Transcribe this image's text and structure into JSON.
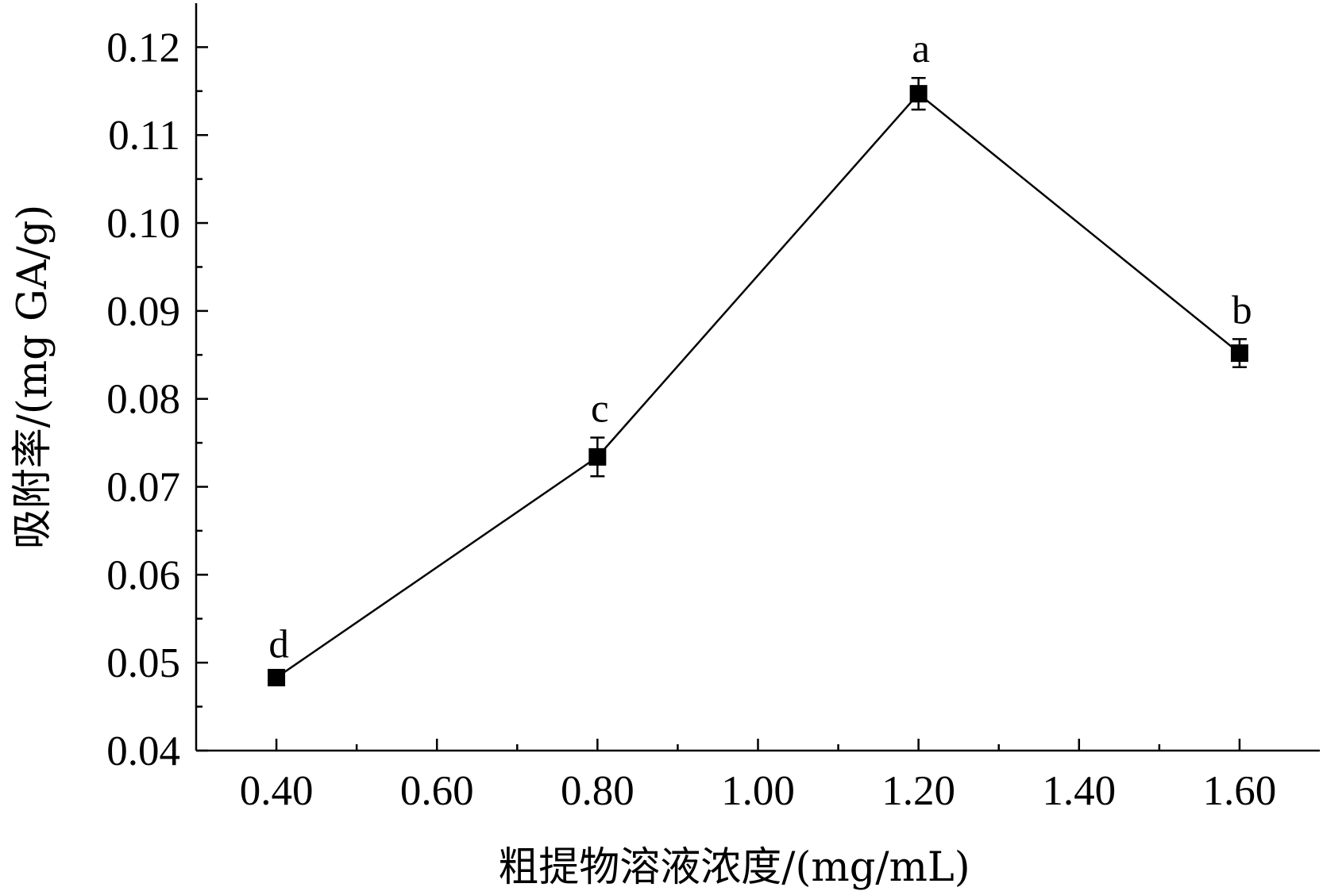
{
  "chart_data": {
    "type": "line",
    "title": "",
    "xlabel": "粗提物溶液浓度/(mg/mL)",
    "ylabel": "吸附率/(mg GA/g)",
    "xlim": [
      0.3,
      1.7
    ],
    "ylim": [
      0.04,
      0.125
    ],
    "x_ticks": [
      "0.40",
      "0.60",
      "0.80",
      "1.00",
      "1.20",
      "1.40",
      "1.60"
    ],
    "y_ticks": [
      "0.04",
      "0.05",
      "0.06",
      "0.07",
      "0.08",
      "0.09",
      "0.10",
      "0.11",
      "0.12"
    ],
    "grid": false,
    "series": [
      {
        "x": [
          0.4,
          0.8,
          1.2,
          1.6
        ],
        "y": [
          0.0483,
          0.0734,
          0.1147,
          0.0852
        ],
        "error": [
          0.0005,
          0.0022,
          0.0018,
          0.0016
        ],
        "labels": [
          "d",
          "c",
          "a",
          "b"
        ],
        "marker": "square",
        "color": "#000000"
      }
    ]
  }
}
